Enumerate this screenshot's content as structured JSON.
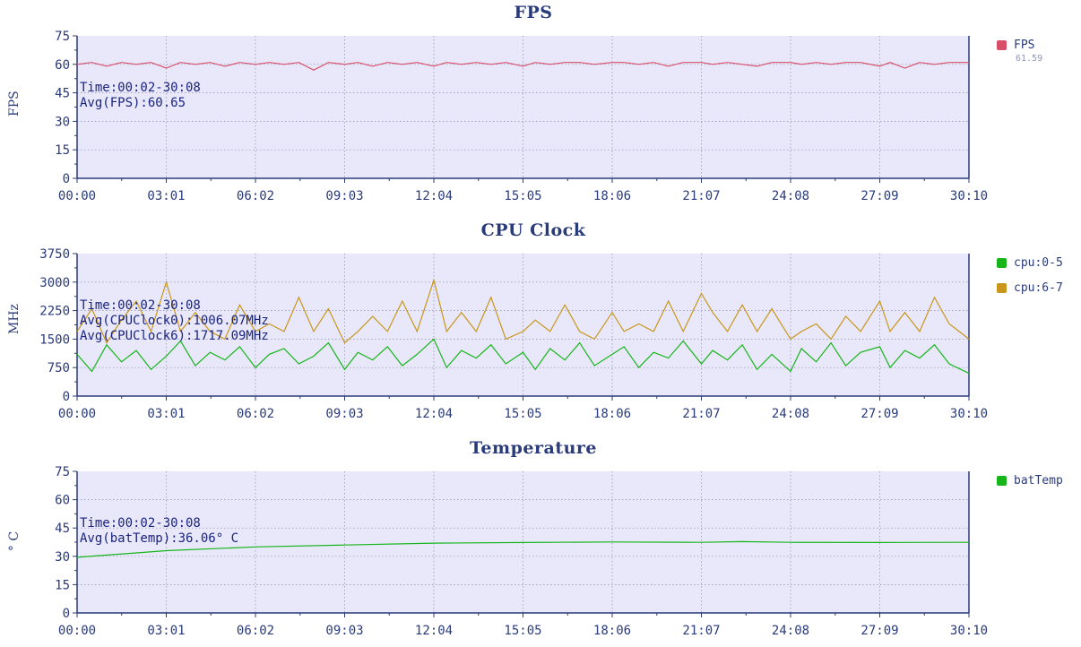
{
  "chart_data": [
    {
      "type": "line",
      "title": "FPS",
      "ylabel": "FPS",
      "ylim": [
        0,
        75
      ],
      "yticks": [
        "0",
        "15",
        "30",
        "45",
        "60",
        "75"
      ],
      "xticks": [
        "00:00",
        "03:01",
        "06:02",
        "09:03",
        "12:04",
        "15:05",
        "18:06",
        "21:07",
        "24:08",
        "27:09",
        "30:10"
      ],
      "grid": true,
      "legend_position": "right",
      "annotation": [
        "Time:00:02-30:08",
        "Avg(FPS):60.65"
      ],
      "series": [
        {
          "name": "FPS",
          "color": "#d94f6a",
          "legend_value": "61.59",
          "x": [
            "00:00",
            "00:30",
            "01:00",
            "01:30",
            "02:00",
            "02:30",
            "03:01",
            "03:30",
            "04:00",
            "04:30",
            "05:00",
            "05:30",
            "06:02",
            "06:30",
            "07:00",
            "07:30",
            "08:00",
            "08:30",
            "09:03",
            "09:30",
            "10:00",
            "10:30",
            "11:00",
            "11:30",
            "12:04",
            "12:30",
            "13:00",
            "13:30",
            "14:00",
            "14:30",
            "15:05",
            "15:30",
            "16:00",
            "16:30",
            "17:00",
            "17:30",
            "18:06",
            "18:30",
            "19:00",
            "19:30",
            "20:00",
            "20:30",
            "21:07",
            "21:30",
            "22:00",
            "22:30",
            "23:00",
            "23:30",
            "24:08",
            "24:30",
            "25:00",
            "25:30",
            "26:00",
            "26:30",
            "27:09",
            "27:30",
            "28:00",
            "28:30",
            "29:00",
            "29:30",
            "30:10"
          ],
          "values": [
            60,
            61,
            59,
            61,
            60,
            61,
            58,
            61,
            60,
            61,
            59,
            61,
            60,
            61,
            60,
            61,
            57,
            61,
            60,
            61,
            59,
            61,
            60,
            61,
            59,
            61,
            60,
            61,
            60,
            61,
            59,
            61,
            60,
            61,
            61,
            60,
            61,
            61,
            60,
            61,
            59,
            61,
            61,
            60,
            61,
            60,
            59,
            61,
            61,
            60,
            61,
            60,
            61,
            61,
            59,
            61,
            58,
            61,
            60,
            61,
            61
          ]
        }
      ]
    },
    {
      "type": "line",
      "title": "CPU Clock",
      "ylabel": "MHz",
      "ylim": [
        0,
        3750
      ],
      "yticks": [
        "0",
        "750",
        "1500",
        "2250",
        "3000",
        "3750"
      ],
      "xticks": [
        "00:00",
        "03:01",
        "06:02",
        "09:03",
        "12:04",
        "15:05",
        "18:06",
        "21:07",
        "24:08",
        "27:09",
        "30:10"
      ],
      "grid": true,
      "legend_position": "right",
      "annotation": [
        "Time:00:02-30:08",
        "Avg(CPUClock0):1006.07MHz",
        "Avg(CPUClock6):1717.09MHz"
      ],
      "series": [
        {
          "name": "cpu:0-5",
          "color": "#17b51a",
          "x": [
            "00:00",
            "00:30",
            "01:00",
            "01:30",
            "02:00",
            "02:30",
            "03:01",
            "03:30",
            "04:00",
            "04:30",
            "05:00",
            "05:30",
            "06:02",
            "06:30",
            "07:00",
            "07:30",
            "08:00",
            "08:30",
            "09:03",
            "09:30",
            "10:00",
            "10:30",
            "11:00",
            "11:30",
            "12:04",
            "12:30",
            "13:00",
            "13:30",
            "14:00",
            "14:30",
            "15:05",
            "15:30",
            "16:00",
            "16:30",
            "17:00",
            "17:30",
            "18:06",
            "18:30",
            "19:00",
            "19:30",
            "20:00",
            "20:30",
            "21:07",
            "21:30",
            "22:00",
            "22:30",
            "23:00",
            "23:30",
            "24:08",
            "24:30",
            "25:00",
            "25:30",
            "26:00",
            "26:30",
            "27:09",
            "27:30",
            "28:00",
            "28:30",
            "29:00",
            "29:30",
            "30:10"
          ],
          "values": [
            1100,
            650,
            1350,
            900,
            1200,
            700,
            1050,
            1450,
            800,
            1150,
            950,
            1300,
            750,
            1100,
            1250,
            850,
            1050,
            1400,
            700,
            1150,
            950,
            1300,
            800,
            1100,
            1500,
            750,
            1200,
            1000,
            1350,
            850,
            1150,
            700,
            1250,
            950,
            1400,
            800,
            1100,
            1300,
            750,
            1150,
            1000,
            1450,
            850,
            1200,
            950,
            1350,
            700,
            1100,
            650,
            1250,
            900,
            1400,
            800,
            1150,
            1300,
            750,
            1200,
            1000,
            1350,
            850,
            600
          ]
        },
        {
          "name": "cpu:6-7",
          "color": "#c8961a",
          "x": [
            "00:00",
            "00:30",
            "01:00",
            "01:30",
            "02:00",
            "02:30",
            "03:01",
            "03:30",
            "04:00",
            "04:30",
            "05:00",
            "05:30",
            "06:02",
            "06:30",
            "07:00",
            "07:30",
            "08:00",
            "08:30",
            "09:03",
            "09:30",
            "10:00",
            "10:30",
            "11:00",
            "11:30",
            "12:04",
            "12:30",
            "13:00",
            "13:30",
            "14:00",
            "14:30",
            "15:05",
            "15:30",
            "16:00",
            "16:30",
            "17:00",
            "17:30",
            "18:06",
            "18:30",
            "19:00",
            "19:30",
            "20:00",
            "20:30",
            "21:07",
            "21:30",
            "22:00",
            "22:30",
            "23:00",
            "23:30",
            "24:08",
            "24:30",
            "25:00",
            "25:30",
            "26:00",
            "26:30",
            "27:09",
            "27:30",
            "28:00",
            "28:30",
            "29:00",
            "29:30",
            "30:10"
          ],
          "values": [
            1700,
            2300,
            1400,
            2000,
            2500,
            1700,
            3000,
            1700,
            2200,
            1700,
            1500,
            2400,
            1700,
            1900,
            1700,
            2600,
            1700,
            2300,
            1400,
            1700,
            2100,
            1700,
            2500,
            1700,
            3050,
            1700,
            2200,
            1700,
            2600,
            1500,
            1700,
            2000,
            1700,
            2400,
            1700,
            1500,
            2200,
            1700,
            1900,
            1700,
            2500,
            1700,
            2700,
            2200,
            1700,
            2400,
            1700,
            2300,
            1500,
            1700,
            1900,
            1500,
            2100,
            1700,
            2500,
            1700,
            2200,
            1700,
            2600,
            1900,
            1500
          ]
        }
      ]
    },
    {
      "type": "line",
      "title": "Temperature",
      "ylabel": "° C",
      "ylim": [
        0,
        75
      ],
      "yticks": [
        "0",
        "15",
        "30",
        "45",
        "60",
        "75"
      ],
      "xticks": [
        "00:00",
        "03:01",
        "06:02",
        "09:03",
        "12:04",
        "15:05",
        "18:06",
        "21:07",
        "24:08",
        "27:09",
        "30:10"
      ],
      "grid": true,
      "legend_position": "right",
      "annotation": [
        "Time:00:02-30:08",
        "Avg(batTemp):36.06° C"
      ],
      "series": [
        {
          "name": "batTemp",
          "color": "#17b51a",
          "x": [
            "00:00",
            "03:01",
            "06:02",
            "09:03",
            "12:04",
            "15:05",
            "18:06",
            "21:07",
            "22:30",
            "24:08",
            "27:09",
            "30:10"
          ],
          "values": [
            29.5,
            33,
            35,
            36,
            37,
            37.3,
            37.6,
            37.4,
            37.8,
            37.4,
            37.3,
            37.4
          ]
        }
      ]
    }
  ]
}
